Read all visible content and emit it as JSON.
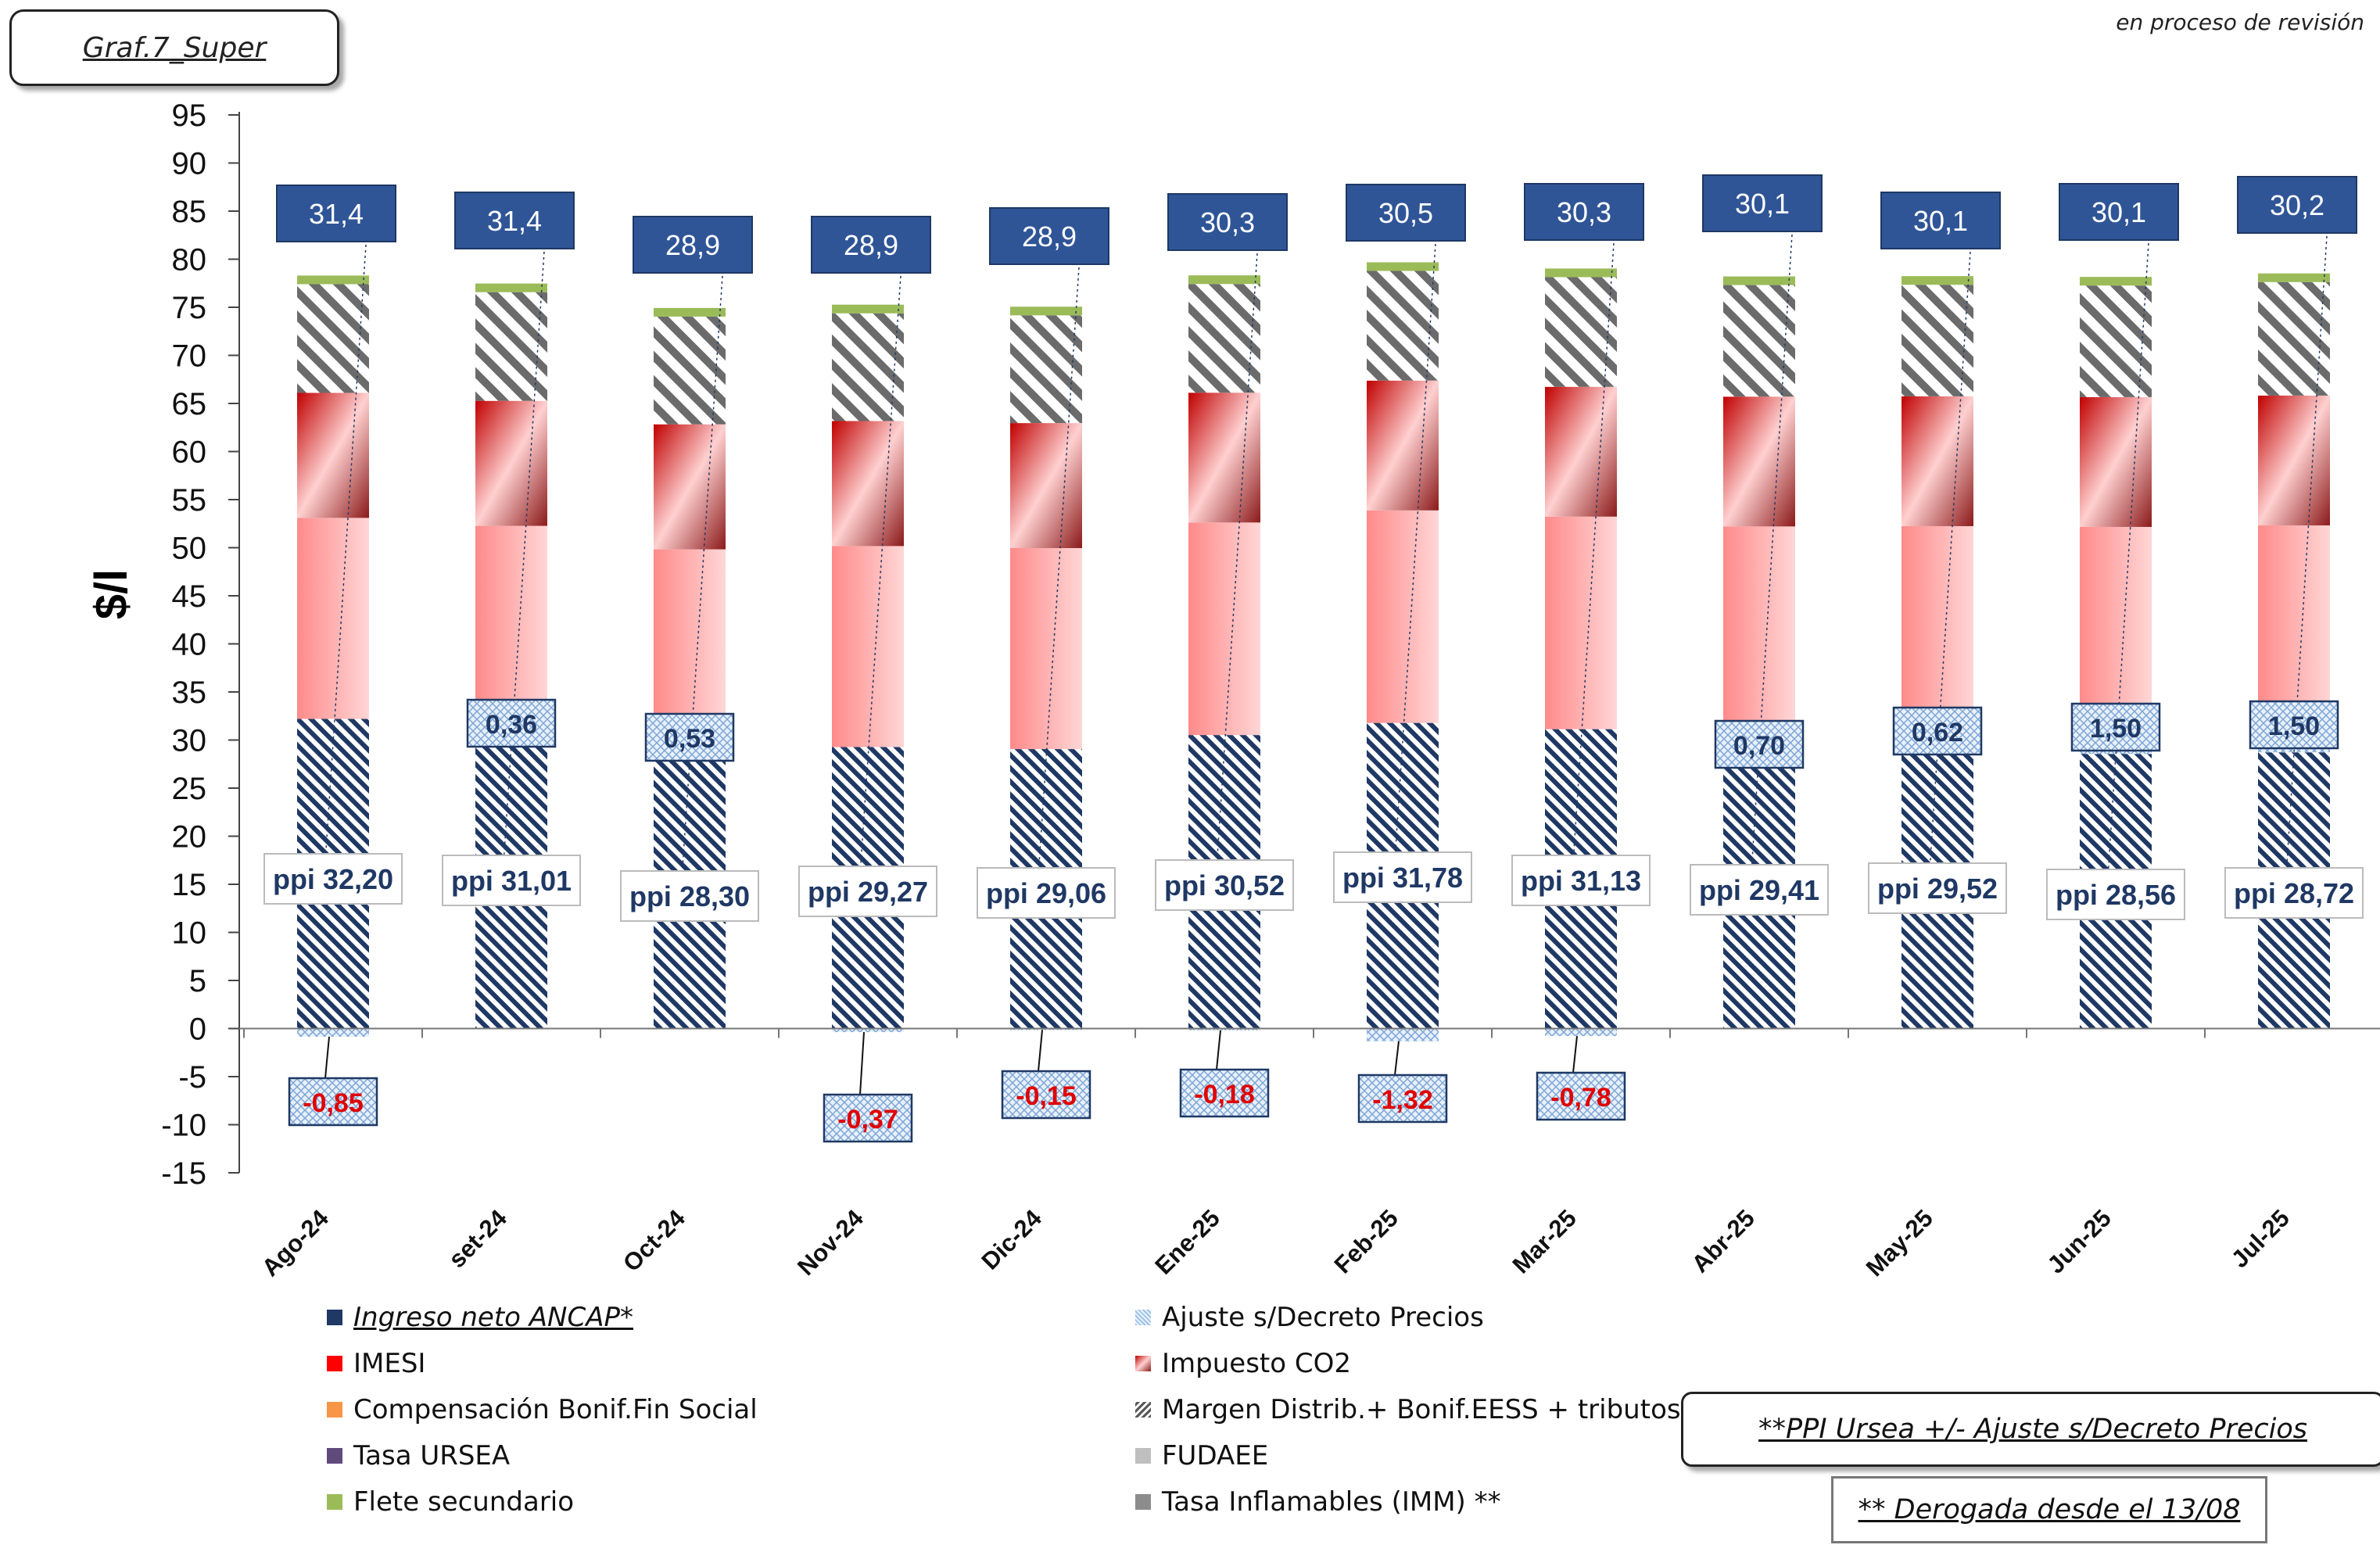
{
  "header": {
    "graph_id": "Graf.7_Super",
    "status_note": "en proceso de revisión"
  },
  "chart_data": {
    "type": "bar",
    "stacked": true,
    "ylabel": "$/l",
    "ylim": [
      -15,
      95
    ],
    "yticks": [
      95,
      90,
      85,
      80,
      75,
      70,
      65,
      60,
      55,
      50,
      45,
      40,
      35,
      30,
      25,
      20,
      15,
      10,
      5,
      0,
      -5,
      -10,
      -15
    ],
    "categories": [
      "Ago-24",
      "set-24",
      "Oct-24",
      "Nov-24",
      "Dic-24",
      "Ene-25",
      "Feb-25",
      "Mar-25",
      "Abr-25",
      "May-25",
      "Jun-25",
      "Jul-25"
    ],
    "series": [
      {
        "name": "Ingreso neto ANCAP*",
        "values": [
          32.2,
          31.01,
          28.3,
          29.27,
          29.06,
          30.52,
          31.78,
          31.13,
          29.41,
          29.52,
          28.56,
          28.72
        ]
      },
      {
        "name": "Ajuste s/Decreto Precios",
        "values": [
          -0.85,
          0.36,
          0.53,
          -0.37,
          -0.15,
          -0.18,
          -1.32,
          -0.78,
          0.7,
          0.62,
          1.5,
          1.5
        ]
      },
      {
        "name": "IMESI",
        "values": [
          20.9,
          20.9,
          21.0,
          20.9,
          20.9,
          22.1,
          22.1,
          22.1,
          22.1,
          22.1,
          22.1,
          22.1
        ]
      },
      {
        "name": "Impuesto CO2",
        "values": [
          13.0,
          13.0,
          13.0,
          13.0,
          13.0,
          13.5,
          13.5,
          13.5,
          13.5,
          13.5,
          13.5,
          13.5
        ]
      },
      {
        "name": "Margen Distrib.+ Bonif.EESS + tributos",
        "values": [
          11.3,
          11.3,
          11.2,
          11.2,
          11.2,
          11.3,
          11.4,
          11.4,
          11.6,
          11.6,
          11.6,
          11.8
        ]
      },
      {
        "name": "Flete secundario",
        "values": [
          0.9,
          0.9,
          0.9,
          0.9,
          0.9,
          0.9,
          0.9,
          0.9,
          0.9,
          0.9,
          0.9,
          0.9
        ]
      }
    ],
    "ppi_labels": [
      "ppi 32,20",
      "ppi 31,01",
      "ppi 28,30",
      "ppi 29,27",
      "ppi 29,06",
      "ppi 30,52",
      "ppi 31,78",
      "ppi 31,13",
      "ppi 29,41",
      "ppi 29,52",
      "ppi 28,56",
      "ppi 28,72"
    ],
    "ajuste_labels": [
      "-0,85",
      "0,36",
      "0,53",
      "-0,37",
      "-0,15",
      "-0,18",
      "-1,32",
      "-0,78",
      "0,70",
      "0,62",
      "1,50",
      "1,50"
    ],
    "top_labels": [
      "31,4",
      "31,4",
      "28,9",
      "28,9",
      "28,9",
      "30,3",
      "30,5",
      "30,3",
      "30,1",
      "30,1",
      "30,1",
      "30,2"
    ],
    "legend": [
      {
        "label": "Ingreso neto ANCAP*",
        "color": "#1f3864",
        "style": "solid",
        "emphasis": true
      },
      {
        "label": "Ajuste s/Decreto Precios",
        "color": "#9dc3e6",
        "style": "crosshatch"
      },
      {
        "label": "IMESI",
        "color": "#ff0000",
        "style": "solid"
      },
      {
        "label": "Impuesto CO2",
        "color": "#c00000",
        "style": "gradient"
      },
      {
        "label": "Compensación Bonif.Fin Social",
        "color": "#f79646",
        "style": "solid"
      },
      {
        "label": "Margen Distrib.+ Bonif.EESS + tributos",
        "color": "#595959",
        "style": "diagonal"
      },
      {
        "label": "Tasa URSEA",
        "color": "#604a7b",
        "style": "solid"
      },
      {
        "label": "FUDAEE",
        "color": "#bfbfbf",
        "style": "solid"
      },
      {
        "label": "Flete secundario",
        "color": "#9bbb59",
        "style": "solid"
      },
      {
        "label": "Tasa Inflamables (IMM) **",
        "color": "#8c8c8c",
        "style": "solid"
      }
    ]
  },
  "notes": {
    "ppi_note": "**PPI Ursea +/- Ajuste s/Decreto Precios",
    "derogada_note": "** Derogada desde el 13/08"
  }
}
